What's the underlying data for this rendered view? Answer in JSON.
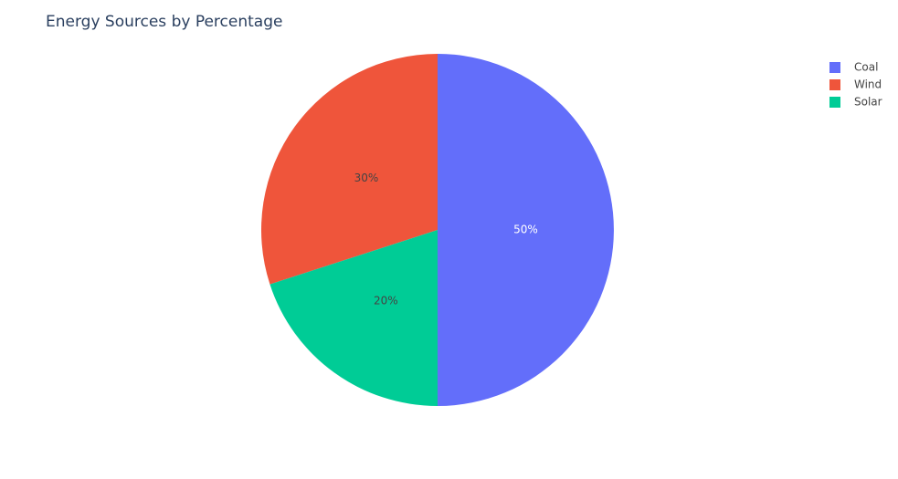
{
  "chart_data": {
    "type": "pie",
    "title": "Energy Sources by Percentage",
    "categories": [
      "Coal",
      "Wind",
      "Solar"
    ],
    "values": [
      50,
      30,
      20
    ],
    "value_labels": [
      "50%",
      "30%",
      "20%"
    ],
    "colors": [
      "#636efa",
      "#ef553b",
      "#00cc96"
    ],
    "direction": "counterclockwise",
    "rotation": 180,
    "legend": "top-right"
  }
}
